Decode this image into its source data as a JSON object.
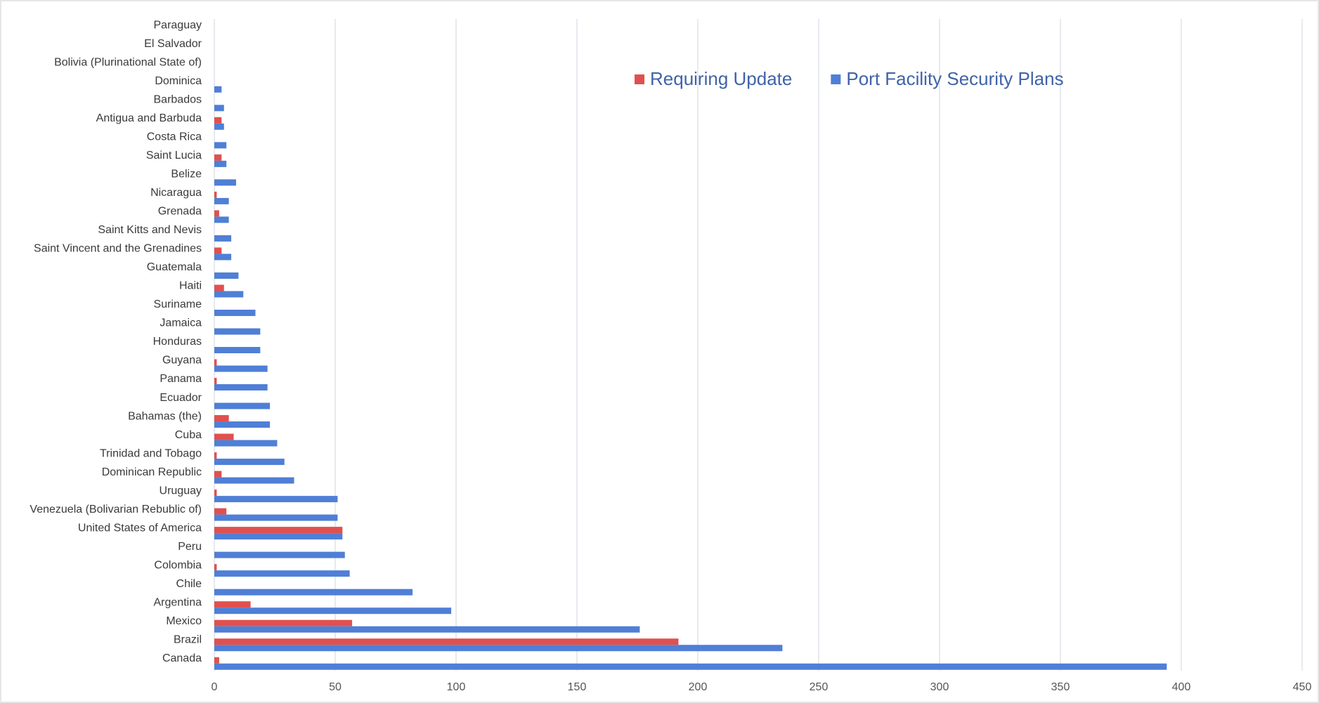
{
  "chart_data": {
    "type": "bar",
    "orientation": "horizontal",
    "categories": [
      "Canada",
      "Brazil",
      "Mexico",
      "Argentina",
      "Chile",
      "Colombia",
      "Peru",
      "United States of America",
      "Venezuela (Bolivarian Rebublic of)",
      "Uruguay",
      "Dominican Republic",
      "Trinidad and Tobago",
      "Cuba",
      "Bahamas (the)",
      "Ecuador",
      "Panama",
      "Guyana",
      "Honduras",
      "Jamaica",
      "Suriname",
      "Haiti",
      "Guatemala",
      "Saint Vincent and the Grenadines",
      "Saint Kitts and Nevis",
      "Grenada",
      "Nicaragua",
      "Belize",
      "Saint Lucia",
      "Costa Rica",
      "Antigua and Barbuda",
      "Barbados",
      "Dominica",
      "Bolivia (Plurinational State of)",
      "El Salvador",
      "Paraguay"
    ],
    "series": [
      {
        "name": "Requiring Update",
        "color": "#e0504f",
        "values": [
          2,
          192,
          57,
          15,
          0,
          1,
          0,
          53,
          5,
          1,
          3,
          1,
          8,
          6,
          0,
          1,
          1,
          0,
          0,
          0,
          4,
          0,
          3,
          0,
          2,
          1,
          0,
          3,
          0,
          3,
          0,
          0,
          0,
          0,
          0
        ]
      },
      {
        "name": "Port Facility Security Plans",
        "color": "#4f7fd6",
        "values": [
          394,
          235,
          176,
          98,
          82,
          56,
          54,
          53,
          51,
          51,
          33,
          29,
          26,
          23,
          23,
          22,
          22,
          19,
          19,
          17,
          12,
          10,
          7,
          7,
          6,
          6,
          9,
          5,
          5,
          4,
          4,
          3,
          0,
          0,
          0
        ]
      }
    ],
    "xlim": [
      0,
      450
    ],
    "xticks": [
      0,
      50,
      100,
      150,
      200,
      250,
      300,
      350,
      400,
      450
    ],
    "grid": true
  }
}
